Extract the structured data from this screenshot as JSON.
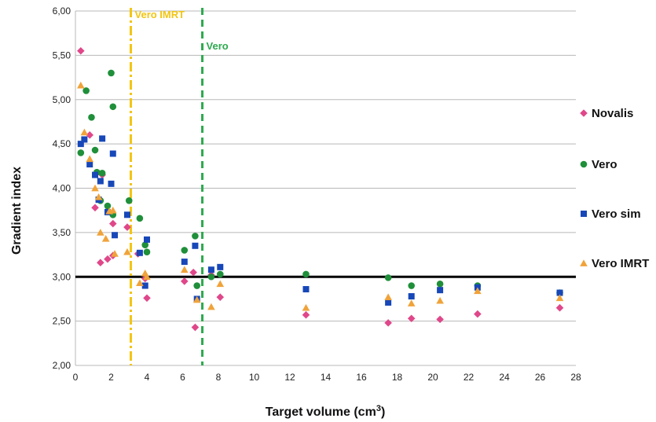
{
  "chart_data": {
    "type": "scatter",
    "xlabel": "Target volume (cm",
    "xlabel_sup": "3",
    "xlabel_end": ")",
    "ylabel": "Gradient index",
    "xlim": [
      0,
      28
    ],
    "ylim": [
      2.0,
      6.0
    ],
    "x_ticks": [
      "0",
      "2",
      "4",
      "6",
      "8",
      "10",
      "12",
      "14",
      "16",
      "18",
      "20",
      "22",
      "24",
      "26",
      "28"
    ],
    "y_ticks": [
      "2,00",
      "2,50",
      "3,00",
      "3,50",
      "4,00",
      "4,50",
      "5,00",
      "5,50",
      "6,00"
    ],
    "x_tick_values": [
      0,
      2,
      4,
      6,
      8,
      10,
      12,
      14,
      16,
      18,
      20,
      22,
      24,
      26,
      28
    ],
    "y_tick_values": [
      2.0,
      2.5,
      3.0,
      3.5,
      4.0,
      4.5,
      5.0,
      5.5,
      6.0
    ],
    "grid": "horizontal",
    "legend_position": "right",
    "reference_lines": [
      {
        "orientation": "horizontal",
        "value": 3.0,
        "color": "#000000",
        "style": "solid",
        "label": ""
      },
      {
        "orientation": "vertical",
        "value": 3.1,
        "color": "#f2c512",
        "style": "dash-dot",
        "label": "Vero IMRT"
      },
      {
        "orientation": "vertical",
        "value": 7.1,
        "color": "#2eaa4f",
        "style": "dashed",
        "label": "Vero"
      }
    ],
    "series": [
      {
        "name": "Novalis",
        "marker": "diamond",
        "color": "#e0478a",
        "points": [
          [
            0.3,
            5.55
          ],
          [
            0.8,
            4.6
          ],
          [
            1.1,
            3.78
          ],
          [
            1.5,
            4.15
          ],
          [
            1.4,
            3.16
          ],
          [
            1.8,
            3.2
          ],
          [
            2.1,
            3.6
          ],
          [
            2.1,
            3.24
          ],
          [
            2.9,
            3.56
          ],
          [
            3.5,
            3.26
          ],
          [
            3.9,
            2.98
          ],
          [
            4.0,
            2.76
          ],
          [
            6.1,
            2.95
          ],
          [
            6.6,
            3.05
          ],
          [
            6.7,
            2.43
          ],
          [
            7.6,
            3.02
          ],
          [
            8.1,
            2.77
          ],
          [
            12.9,
            2.57
          ],
          [
            17.5,
            2.48
          ],
          [
            18.8,
            2.53
          ],
          [
            20.4,
            2.52
          ],
          [
            22.5,
            2.58
          ],
          [
            27.1,
            2.65
          ]
        ]
      },
      {
        "name": "Vero",
        "marker": "circle",
        "color": "#1f8f3a",
        "points": [
          [
            0.3,
            4.4
          ],
          [
            0.6,
            5.1
          ],
          [
            0.9,
            4.8
          ],
          [
            1.1,
            4.43
          ],
          [
            1.2,
            4.18
          ],
          [
            1.5,
            4.17
          ],
          [
            1.4,
            3.86
          ],
          [
            1.8,
            3.8
          ],
          [
            2.1,
            3.7
          ],
          [
            2.0,
            5.3
          ],
          [
            2.1,
            4.92
          ],
          [
            3.0,
            3.86
          ],
          [
            3.6,
            3.66
          ],
          [
            3.9,
            3.36
          ],
          [
            4.0,
            3.28
          ],
          [
            6.1,
            3.3
          ],
          [
            6.7,
            3.46
          ],
          [
            6.8,
            2.9
          ],
          [
            7.6,
            3.0
          ],
          [
            8.1,
            3.03
          ],
          [
            12.9,
            3.03
          ],
          [
            17.5,
            2.99
          ],
          [
            18.8,
            2.9
          ],
          [
            20.4,
            2.92
          ],
          [
            22.5,
            2.9
          ],
          [
            27.1,
            2.82
          ]
        ]
      },
      {
        "name": "Vero sim",
        "marker": "square",
        "color": "#1747b8",
        "points": [
          [
            0.3,
            4.5
          ],
          [
            0.5,
            4.55
          ],
          [
            0.8,
            4.27
          ],
          [
            1.1,
            4.15
          ],
          [
            1.3,
            3.87
          ],
          [
            1.4,
            4.08
          ],
          [
            1.5,
            4.56
          ],
          [
            1.8,
            3.73
          ],
          [
            2.0,
            4.05
          ],
          [
            2.1,
            4.39
          ],
          [
            2.2,
            3.47
          ],
          [
            2.9,
            3.7
          ],
          [
            3.6,
            3.27
          ],
          [
            4.0,
            3.42
          ],
          [
            3.9,
            2.9
          ],
          [
            6.1,
            3.17
          ],
          [
            6.7,
            3.35
          ],
          [
            6.8,
            2.75
          ],
          [
            7.6,
            3.08
          ],
          [
            8.1,
            3.11
          ],
          [
            12.9,
            2.86
          ],
          [
            17.5,
            2.71
          ],
          [
            18.8,
            2.78
          ],
          [
            20.4,
            2.85
          ],
          [
            22.5,
            2.88
          ],
          [
            27.1,
            2.82
          ]
        ]
      },
      {
        "name": "Vero IMRT",
        "marker": "triangle",
        "color": "#f0a33a",
        "points": [
          [
            0.3,
            5.16
          ],
          [
            0.5,
            4.63
          ],
          [
            0.8,
            4.33
          ],
          [
            1.1,
            4.0
          ],
          [
            1.3,
            3.9
          ],
          [
            1.4,
            3.5
          ],
          [
            1.7,
            3.43
          ],
          [
            1.9,
            3.74
          ],
          [
            2.1,
            3.75
          ],
          [
            2.2,
            3.26
          ],
          [
            2.9,
            3.28
          ],
          [
            3.6,
            2.93
          ],
          [
            3.9,
            3.04
          ],
          [
            4.0,
            3.0
          ],
          [
            6.1,
            3.08
          ],
          [
            6.8,
            2.74
          ],
          [
            7.6,
            2.66
          ],
          [
            8.1,
            2.92
          ],
          [
            12.9,
            2.65
          ],
          [
            17.5,
            2.77
          ],
          [
            18.8,
            2.7
          ],
          [
            20.4,
            2.73
          ],
          [
            22.5,
            2.84
          ],
          [
            27.1,
            2.76
          ]
        ]
      }
    ]
  }
}
